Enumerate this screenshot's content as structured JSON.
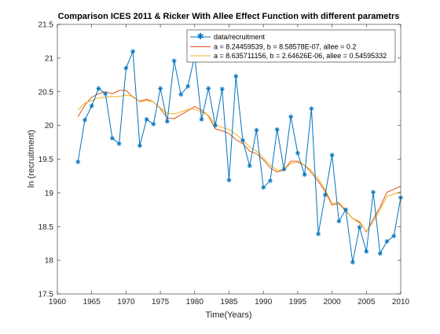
{
  "chart_data": {
    "type": "line",
    "title": "Comparison ICES 2011 & Ricker With Allee Effect Function with different parametrs",
    "xlabel": "Time(Years)",
    "ylabel": "ln (recruitment)",
    "xlim": [
      1960,
      2010
    ],
    "ylim": [
      17.5,
      21.5
    ],
    "xticks": [
      1960,
      1965,
      1970,
      1975,
      1980,
      1985,
      1990,
      1995,
      2000,
      2005,
      2010
    ],
    "yticks": [
      17.5,
      18,
      18.5,
      19,
      19.5,
      20,
      20.5,
      21,
      21.5
    ],
    "grid": false,
    "legend_position": "top-right",
    "x": [
      1963,
      1964,
      1965,
      1966,
      1967,
      1968,
      1969,
      1970,
      1971,
      1972,
      1973,
      1974,
      1975,
      1976,
      1977,
      1978,
      1979,
      1980,
      1981,
      1982,
      1983,
      1984,
      1985,
      1986,
      1987,
      1988,
      1989,
      1990,
      1991,
      1992,
      1993,
      1994,
      1995,
      1996,
      1997,
      1998,
      1999,
      2000,
      2001,
      2002,
      2003,
      2004,
      2005,
      2006,
      2007,
      2008,
      2009,
      2010
    ],
    "series": [
      {
        "name": "data/recruitment",
        "color": "#0072BD",
        "marker": "asterisk",
        "values": [
          19.46,
          20.08,
          20.29,
          20.55,
          20.47,
          19.81,
          19.73,
          20.85,
          21.1,
          19.7,
          20.09,
          20.02,
          20.55,
          20.06,
          20.96,
          20.46,
          20.58,
          21.03,
          20.09,
          20.55,
          20.0,
          20.54,
          19.19,
          20.73,
          19.78,
          19.4,
          19.93,
          19.08,
          19.18,
          19.94,
          19.35,
          20.13,
          19.59,
          19.27,
          20.25,
          18.39,
          18.97,
          19.56,
          18.58,
          18.75,
          17.97,
          18.49,
          18.13,
          19.01,
          18.1,
          18.28,
          18.36,
          18.93
        ]
      },
      {
        "name": "a = 8.24459539, b = 8.58578E-07, allee = 0.2",
        "color": "#D95319",
        "values": [
          20.13,
          20.3,
          20.42,
          20.47,
          20.5,
          20.47,
          20.52,
          20.52,
          20.42,
          20.36,
          20.39,
          20.35,
          20.25,
          20.11,
          20.1,
          20.16,
          20.22,
          20.28,
          20.23,
          20.14,
          19.95,
          19.92,
          19.88,
          19.79,
          19.73,
          19.62,
          19.58,
          19.49,
          19.37,
          19.31,
          19.34,
          19.47,
          19.47,
          19.41,
          19.3,
          19.17,
          19.02,
          18.82,
          18.84,
          18.73,
          18.62,
          18.57,
          18.42,
          18.61,
          18.79,
          19.01,
          19.05,
          19.1
        ]
      },
      {
        "name": "a = 8.635711156, b = 2.64626E-06, allee = 0.54595332",
        "color": "#EDB120",
        "values": [
          20.23,
          20.33,
          20.37,
          20.41,
          20.42,
          20.43,
          20.43,
          20.45,
          20.43,
          20.35,
          20.37,
          20.35,
          20.26,
          20.18,
          20.17,
          20.2,
          20.24,
          20.24,
          20.2,
          20.15,
          20.01,
          19.97,
          19.94,
          19.87,
          19.78,
          19.68,
          19.62,
          19.52,
          19.41,
          19.34,
          19.34,
          19.44,
          19.45,
          19.41,
          19.33,
          19.21,
          19.05,
          18.84,
          18.86,
          18.74,
          18.62,
          18.55,
          18.43,
          18.57,
          18.75,
          18.95,
          18.98,
          19.02
        ]
      }
    ]
  }
}
